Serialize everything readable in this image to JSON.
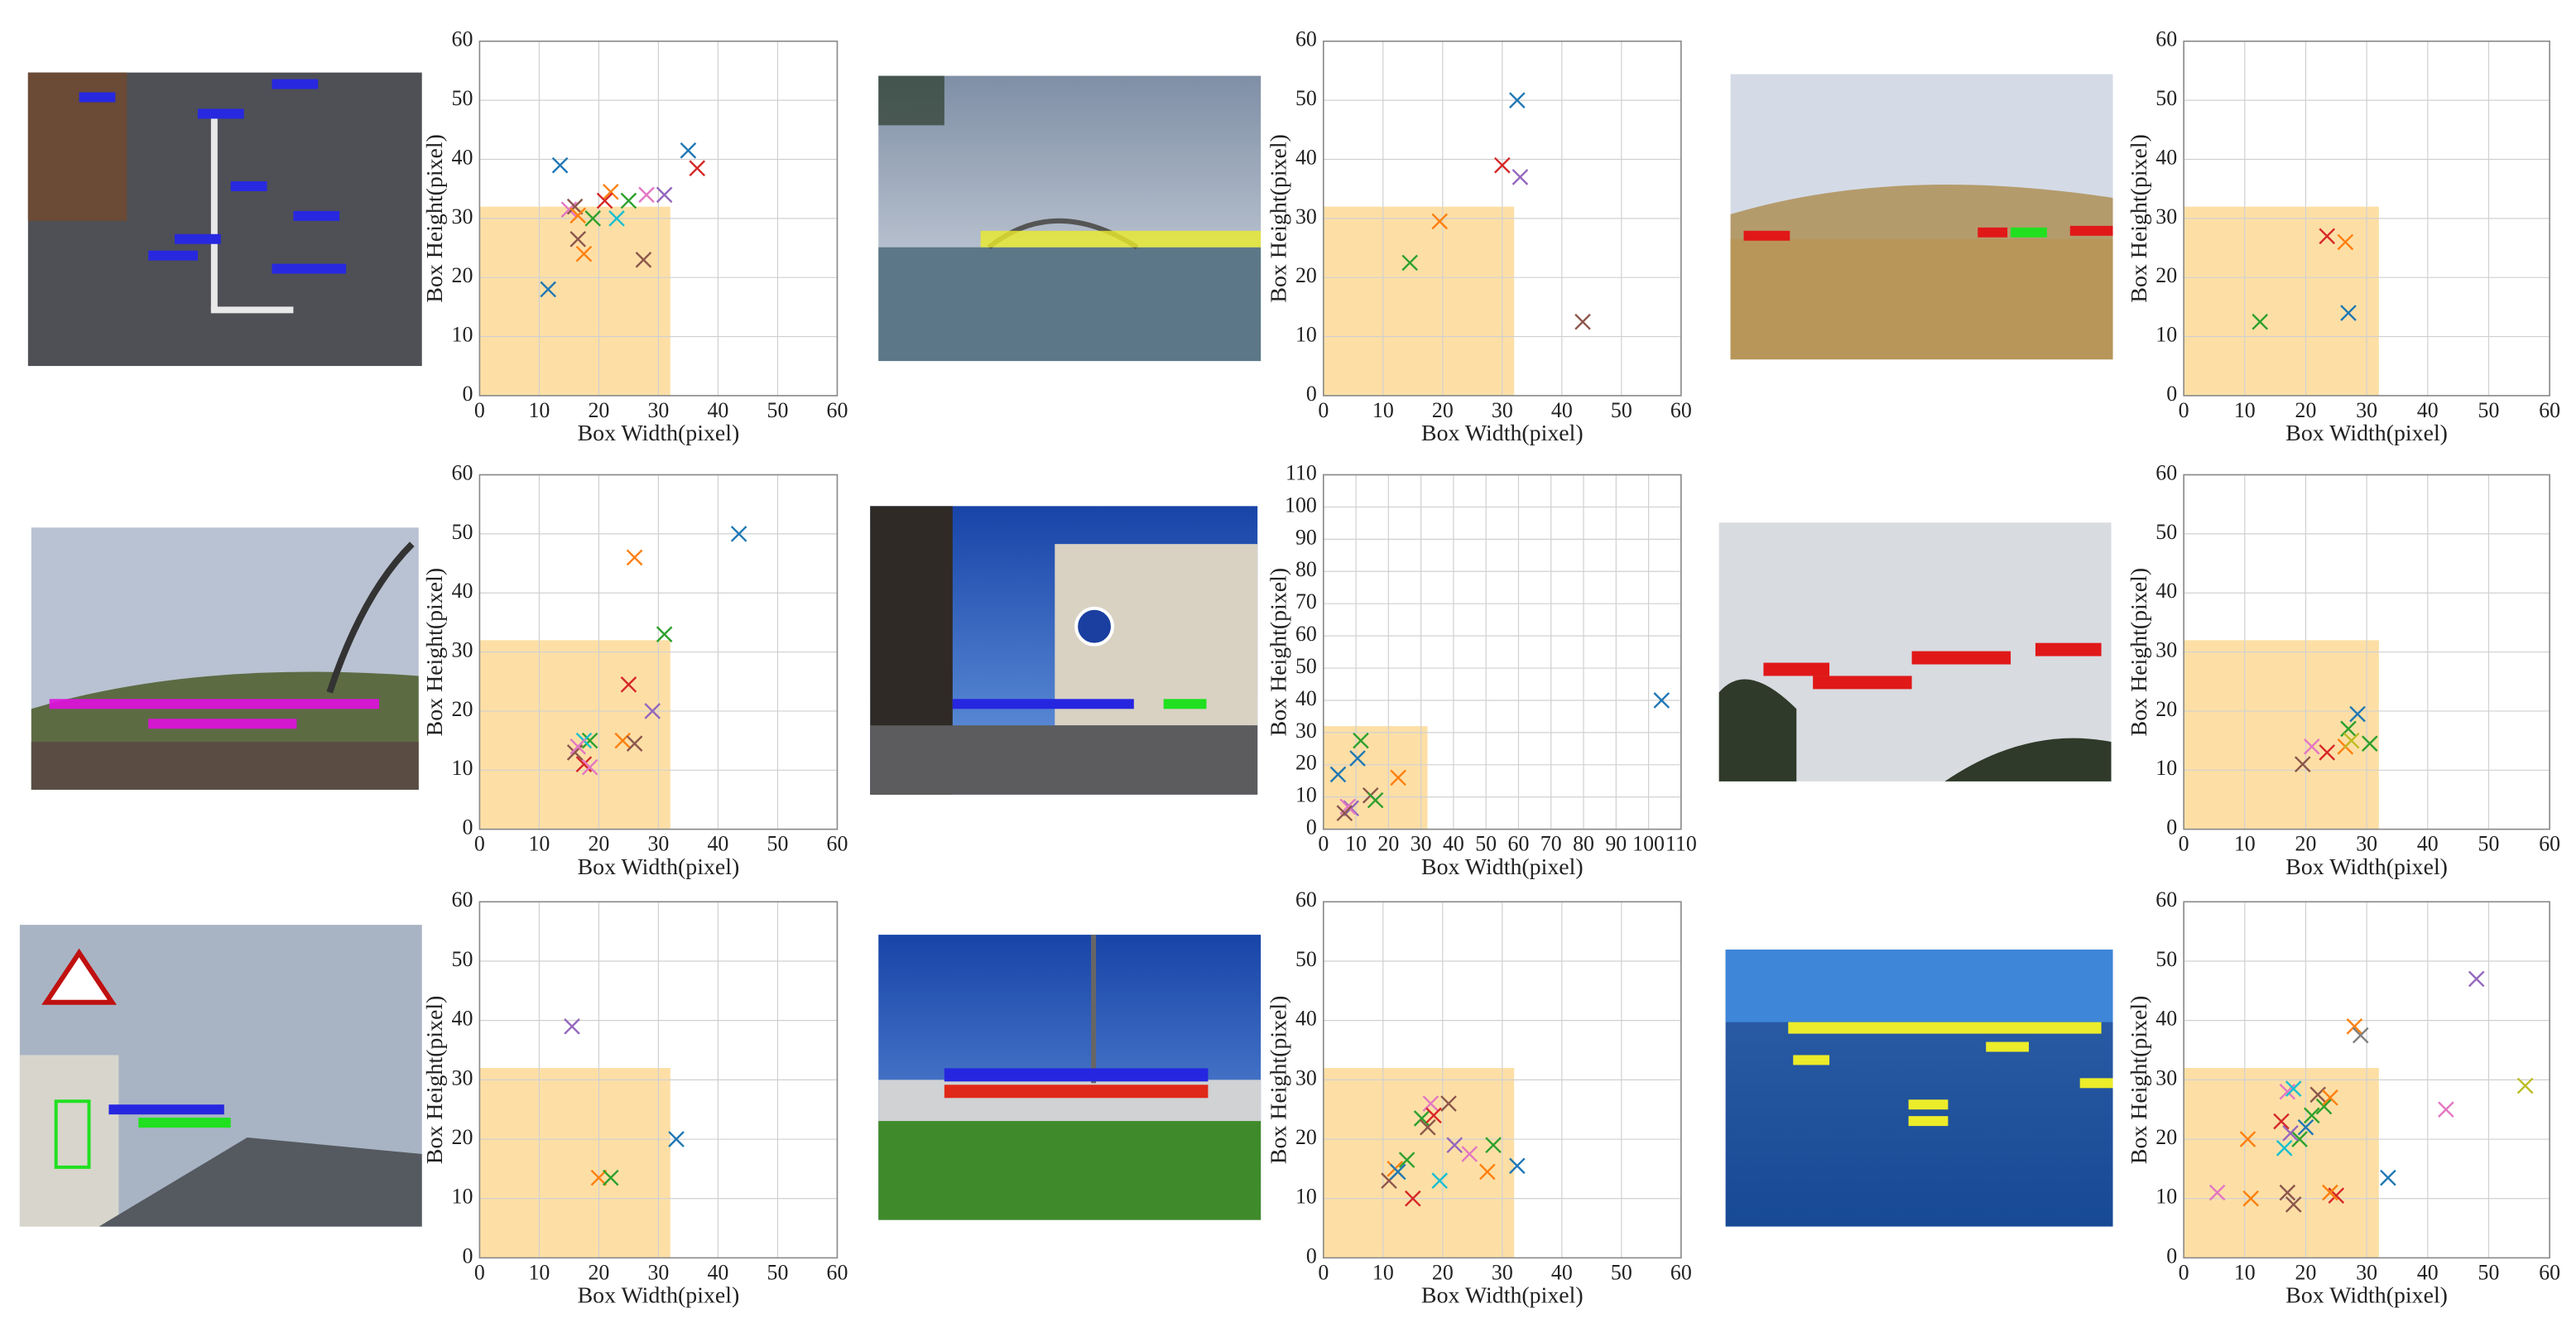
{
  "chart_data": [
    {
      "type": "scatter",
      "xlabel": "Box Width(pixel)",
      "ylabel": "Box Height(pixel)",
      "xlim": [
        0,
        60
      ],
      "ylim": [
        0,
        60
      ],
      "xticks": [
        0,
        10,
        20,
        30,
        40,
        50,
        60
      ],
      "yticks": [
        0,
        10,
        20,
        30,
        40,
        50,
        60
      ],
      "grid": true,
      "region": {
        "x": [
          0,
          32
        ],
        "y": [
          0,
          32
        ],
        "color": "#fddfa6"
      },
      "x": [
        35,
        36.5,
        13.5,
        22,
        28,
        31,
        25,
        15,
        16,
        16.5,
        19,
        23,
        16.5,
        17.5,
        27.5,
        11.5,
        21
      ],
      "values": [
        41.5,
        38.5,
        39,
        34.5,
        34,
        34,
        33,
        31.5,
        32,
        30.5,
        30,
        30,
        26.5,
        24,
        23,
        18,
        33
      ],
      "colors": [
        "#1f77b4",
        "#d62728",
        "#1f77b4",
        "#ff7f0e",
        "#e377c2",
        "#9467bd",
        "#2ca02c",
        "#e377c2",
        "#8c564b",
        "#ff7f0e",
        "#2ca02c",
        "#17becf",
        "#8c564b",
        "#ff7f0e",
        "#8c564b",
        "#1f77b4",
        "#d62728"
      ]
    },
    {
      "type": "scatter",
      "xlabel": "Box Width(pixel)",
      "ylabel": "Box Height(pixel)",
      "xlim": [
        0,
        60
      ],
      "ylim": [
        0,
        60
      ],
      "xticks": [
        0,
        10,
        20,
        30,
        40,
        50,
        60
      ],
      "yticks": [
        0,
        10,
        20,
        30,
        40,
        50,
        60
      ],
      "grid": true,
      "region": {
        "x": [
          0,
          32
        ],
        "y": [
          0,
          32
        ],
        "color": "#fddfa6"
      },
      "x": [
        32.5,
        30,
        33,
        19.5,
        14.5,
        43.5
      ],
      "values": [
        50,
        39,
        37,
        29.5,
        22.5,
        12.5
      ],
      "colors": [
        "#1f77b4",
        "#d62728",
        "#9467bd",
        "#ff7f0e",
        "#2ca02c",
        "#8c564b"
      ]
    },
    {
      "type": "scatter",
      "xlabel": "Box Width(pixel)",
      "ylabel": "Box Height(pixel)",
      "xlim": [
        0,
        60
      ],
      "ylim": [
        0,
        60
      ],
      "xticks": [
        0,
        10,
        20,
        30,
        40,
        50,
        60
      ],
      "yticks": [
        0,
        10,
        20,
        30,
        40,
        50,
        60
      ],
      "grid": true,
      "region": {
        "x": [
          0,
          32
        ],
        "y": [
          0,
          32
        ],
        "color": "#fddfa6"
      },
      "x": [
        23.5,
        26.5,
        27,
        12.5
      ],
      "values": [
        27,
        26,
        14,
        12.5
      ],
      "colors": [
        "#d62728",
        "#ff7f0e",
        "#1f77b4",
        "#2ca02c"
      ]
    },
    {
      "type": "scatter",
      "xlabel": "Box Width(pixel)",
      "ylabel": "Box Height(pixel)",
      "xlim": [
        0,
        60
      ],
      "ylim": [
        0,
        60
      ],
      "xticks": [
        0,
        10,
        20,
        30,
        40,
        50,
        60
      ],
      "yticks": [
        0,
        10,
        20,
        30,
        40,
        50,
        60
      ],
      "grid": true,
      "region": {
        "x": [
          0,
          32
        ],
        "y": [
          0,
          32
        ],
        "color": "#fddfa6"
      },
      "x": [
        43.5,
        26,
        31,
        25,
        29,
        24,
        26,
        18.5,
        17.5,
        16,
        17.5,
        18.5,
        16.5
      ],
      "values": [
        50,
        46,
        33,
        24.5,
        20,
        15,
        14.5,
        15,
        15,
        13,
        11,
        10.5,
        14
      ],
      "colors": [
        "#1f77b4",
        "#ff7f0e",
        "#2ca02c",
        "#d62728",
        "#9467bd",
        "#ff7f0e",
        "#8c564b",
        "#2ca02c",
        "#17becf",
        "#8c564b",
        "#d62728",
        "#e377c2",
        "#e377c2"
      ]
    },
    {
      "type": "scatter",
      "xlabel": "Box Width(pixel)",
      "ylabel": "Box Height(pixel)",
      "xlim": [
        0,
        110
      ],
      "ylim": [
        0,
        110
      ],
      "xticks": [
        0,
        10,
        20,
        30,
        40,
        50,
        60,
        70,
        80,
        90,
        100,
        110
      ],
      "yticks": [
        0,
        10,
        20,
        30,
        40,
        50,
        60,
        70,
        80,
        90,
        100,
        110
      ],
      "grid": true,
      "region": {
        "x": [
          0,
          32
        ],
        "y": [
          0,
          32
        ],
        "color": "#fddfa6"
      },
      "x": [
        104,
        11.5,
        23,
        10.5,
        4.5,
        14.5,
        16,
        8.5,
        7.5,
        6.5
      ],
      "values": [
        40,
        27.5,
        16,
        22,
        17,
        10.5,
        9,
        6.5,
        7,
        5
      ],
      "colors": [
        "#1f77b4",
        "#2ca02c",
        "#ff7f0e",
        "#1f77b4",
        "#1f77b4",
        "#8c564b",
        "#2ca02c",
        "#9467bd",
        "#e377c2",
        "#8c564b"
      ]
    },
    {
      "type": "scatter",
      "xlabel": "Box Width(pixel)",
      "ylabel": "Box Height(pixel)",
      "xlim": [
        0,
        60
      ],
      "ylim": [
        0,
        60
      ],
      "xticks": [
        0,
        10,
        20,
        30,
        40,
        50,
        60
      ],
      "yticks": [
        0,
        10,
        20,
        30,
        40,
        50,
        60
      ],
      "grid": true,
      "region": {
        "x": [
          0,
          32
        ],
        "y": [
          0,
          32
        ],
        "color": "#fddfa6"
      },
      "x": [
        28.5,
        27,
        30.5,
        26.5,
        23.5,
        21,
        19.5,
        27.5
      ],
      "values": [
        19.5,
        17,
        14.5,
        14,
        13,
        14,
        11,
        15
      ],
      "colors": [
        "#1f77b4",
        "#2ca02c",
        "#2ca02c",
        "#ff7f0e",
        "#d62728",
        "#e377c2",
        "#8c564b",
        "#bcbd22"
      ]
    },
    {
      "type": "scatter",
      "xlabel": "Box Width(pixel)",
      "ylabel": "Box Height(pixel)",
      "xlim": [
        0,
        60
      ],
      "ylim": [
        0,
        60
      ],
      "xticks": [
        0,
        10,
        20,
        30,
        40,
        50,
        60
      ],
      "yticks": [
        0,
        10,
        20,
        30,
        40,
        50,
        60
      ],
      "grid": true,
      "region": {
        "x": [
          0,
          32
        ],
        "y": [
          0,
          32
        ],
        "color": "#fddfa6"
      },
      "x": [
        15.5,
        33,
        20,
        22
      ],
      "values": [
        39,
        20,
        13.5,
        13.5
      ],
      "colors": [
        "#9467bd",
        "#1f77b4",
        "#ff7f0e",
        "#2ca02c"
      ]
    },
    {
      "type": "scatter",
      "xlabel": "Box Width(pixel)",
      "ylabel": "Box Height(pixel)",
      "xlim": [
        0,
        60
      ],
      "ylim": [
        0,
        60
      ],
      "xticks": [
        0,
        10,
        20,
        30,
        40,
        50,
        60
      ],
      "yticks": [
        0,
        10,
        20,
        30,
        40,
        50,
        60
      ],
      "grid": true,
      "region": {
        "x": [
          0,
          32
        ],
        "y": [
          0,
          32
        ],
        "color": "#fddfa6"
      },
      "x": [
        32.5,
        28.5,
        27.5,
        18,
        21,
        16.5,
        17.5,
        18.5,
        22,
        24.5,
        14,
        12,
        15,
        11,
        19.5,
        12.5
      ],
      "values": [
        15.5,
        19,
        14.5,
        26,
        26,
        23.5,
        22,
        24,
        19,
        17.5,
        16.5,
        15,
        10,
        13,
        13,
        14.5
      ],
      "colors": [
        "#1f77b4",
        "#2ca02c",
        "#ff7f0e",
        "#e377c2",
        "#8c564b",
        "#2ca02c",
        "#8c564b",
        "#d62728",
        "#9467bd",
        "#e377c2",
        "#2ca02c",
        "#ff7f0e",
        "#d62728",
        "#8c564b",
        "#17becf",
        "#1f77b4"
      ]
    },
    {
      "type": "scatter",
      "xlabel": "Box Width(pixel)",
      "ylabel": "Box Height(pixel)",
      "xlim": [
        0,
        60
      ],
      "ylim": [
        0,
        60
      ],
      "xticks": [
        0,
        10,
        20,
        30,
        40,
        50,
        60
      ],
      "yticks": [
        0,
        10,
        20,
        30,
        40,
        50,
        60
      ],
      "grid": true,
      "region": {
        "x": [
          0,
          32
        ],
        "y": [
          0,
          32
        ],
        "color": "#fddfa6"
      },
      "x": [
        48,
        56,
        43,
        28,
        29,
        33.5,
        5.5,
        11,
        10.5,
        18,
        17,
        25,
        24,
        17,
        18,
        16,
        22,
        21,
        23,
        19,
        20,
        16.5,
        17.5,
        24
      ],
      "values": [
        47,
        29,
        25,
        39,
        37.5,
        13.5,
        11,
        10,
        20,
        9,
        11,
        10.5,
        11,
        28,
        28.5,
        23,
        27.5,
        24,
        25.5,
        20,
        22,
        18.5,
        21,
        27
      ],
      "colors": [
        "#9467bd",
        "#bcbd22",
        "#e377c2",
        "#ff7f0e",
        "#7f7f7f",
        "#1f77b4",
        "#e377c2",
        "#ff7f0e",
        "#ff7f0e",
        "#8c564b",
        "#8c564b",
        "#d62728",
        "#ff7f0e",
        "#e377c2",
        "#17becf",
        "#d62728",
        "#8c564b",
        "#2ca02c",
        "#2ca02c",
        "#2ca02c",
        "#1f77b4",
        "#17becf",
        "#9467bd",
        "#ff7f0e"
      ]
    }
  ]
}
